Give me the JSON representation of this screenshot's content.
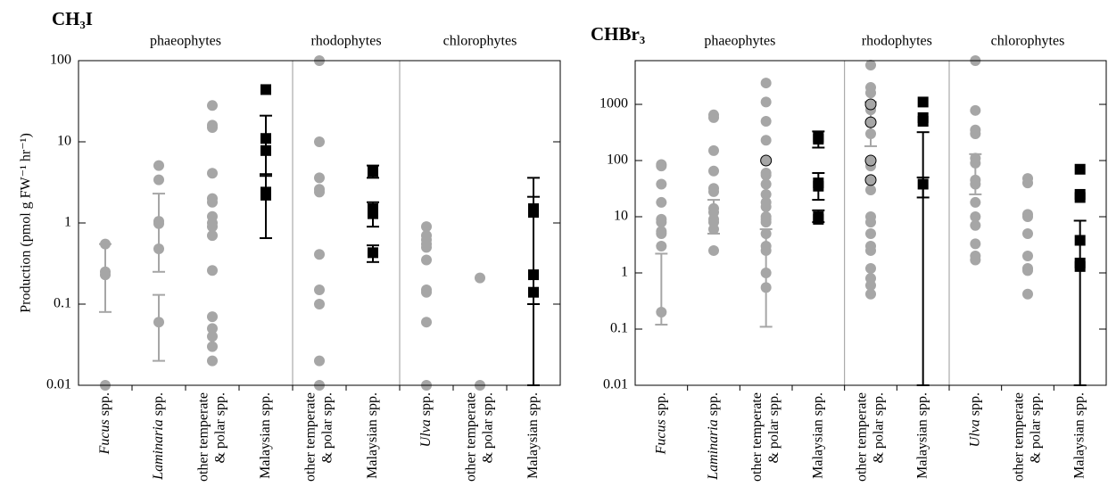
{
  "chart_data": [
    {
      "type": "scatter",
      "title": "CH₃I",
      "ylabel": "Production (pmol g FW⁻¹ hr⁻¹)",
      "log_y": true,
      "ylim": [
        0.01,
        100
      ],
      "yticks": [
        0.01,
        0.1,
        1,
        10,
        100
      ],
      "groups": [
        {
          "label": "phaeophytes",
          "categories": [
            {
              "label": [
                [
                  {
                    "text": "Fucus",
                    "italic": true
                  },
                  " spp."
                ]
              ],
              "color": "#a6a6a6",
              "marker": "circle",
              "values": [
                0.55,
                0.25,
                0.23,
                0.01
              ],
              "error_bars": [
                [
                  0.08,
                  0.55
                ]
              ]
            },
            {
              "label": [
                [
                  {
                    "text": "Laminaria",
                    "italic": true
                  },
                  " spp."
                ]
              ],
              "color": "#a6a6a6",
              "marker": "circle",
              "values": [
                5.1,
                3.4,
                1.05,
                0.98,
                0.48,
                0.06
              ],
              "error_bars": [
                [
                  0.25,
                  2.3
                ],
                [
                  0.02,
                  0.13
                ]
              ]
            },
            {
              "label": [
                [
                  "other temperate"
                ],
                [
                  "& polar spp."
                ]
              ],
              "color": "#a6a6a6",
              "marker": "circle",
              "values": [
                28,
                16,
                15,
                4.1,
                2.0,
                1.8,
                1.2,
                1.0,
                0.9,
                0.7,
                0.26,
                0.07,
                0.05,
                0.04,
                0.03,
                0.02
              ]
            },
            {
              "label": [
                [
                  "Malaysian spp."
                ]
              ],
              "color": "#000000",
              "marker": "square",
              "values": [
                44,
                11,
                7.8,
                2.4,
                2.2
              ],
              "error_bars": [
                [
                  3.8,
                  21
                ],
                [
                  0.65,
                  4
                ]
              ]
            }
          ]
        },
        {
          "label": "rhodophytes",
          "categories": [
            {
              "label": [
                [
                  "other temperate"
                ],
                [
                  "& polar spp."
                ]
              ],
              "color": "#a6a6a6",
              "marker": "circle",
              "values": [
                100,
                10,
                3.6,
                2.6,
                2.4,
                0.41,
                0.15,
                0.1,
                0.02,
                0.01
              ]
            },
            {
              "label": [
                [
                  "Malaysian spp."
                ]
              ],
              "color": "#000000",
              "marker": "square",
              "values": [
                4.3,
                1.5,
                1.3,
                0.43
              ],
              "error_bars": [
                [
                  3.6,
                  5.1
                ],
                [
                  0.9,
                  1.8
                ],
                [
                  0.33,
                  0.53
                ]
              ]
            }
          ]
        },
        {
          "label": "chlorophytes",
          "categories": [
            {
              "label": [
                [
                  {
                    "text": "Ulva",
                    "italic": true
                  },
                  " spp."
                ]
              ],
              "color": "#a6a6a6",
              "marker": "circle",
              "values": [
                0.9,
                0.7,
                0.62,
                0.55,
                0.5,
                0.35,
                0.15,
                0.14,
                0.06,
                0.01
              ]
            },
            {
              "label": [
                [
                  "other temperate"
                ],
                [
                  "& polar spp."
                ]
              ],
              "color": "#a6a6a6",
              "marker": "circle",
              "values": [
                0.21,
                0.01
              ]
            },
            {
              "label": [
                [
                  "Malaysian spp."
                ]
              ],
              "color": "#000000",
              "marker": "square",
              "values": [
                1.5,
                1.35,
                0.23,
                0.14
              ],
              "error_bars": [
                [
                  0.01,
                  3.6
                ],
                [
                  0.1,
                  2.1
                ]
              ]
            }
          ]
        }
      ]
    },
    {
      "type": "scatter",
      "title": "CHBr₃",
      "log_y": true,
      "ylim": [
        0.01,
        6000
      ],
      "yticks": [
        0.01,
        0.1,
        1,
        10,
        100,
        1000
      ],
      "groups": [
        {
          "label": "phaeophytes",
          "categories": [
            {
              "label": [
                [
                  {
                    "text": "Fucus",
                    "italic": true
                  },
                  " spp."
                ]
              ],
              "color": "#a6a6a6",
              "marker": "circle",
              "values": [
                85,
                80,
                38,
                18,
                9,
                8,
                5.5,
                5,
                3,
                0.2
              ],
              "error_bars": [
                [
                  0.12,
                  2.2
                ]
              ]
            },
            {
              "label": [
                [
                  {
                    "text": "Laminaria",
                    "italic": true
                  },
                  " spp."
                ]
              ],
              "color": "#a6a6a6",
              "marker": "circle",
              "values": [
                650,
                580,
                150,
                65,
                32,
                28,
                14,
                12,
                9,
                8,
                6,
                2.5
              ],
              "error_bars": [
                [
                  5,
                  20
                ]
              ]
            },
            {
              "label": [
                [
                  "other temperate"
                ],
                [
                  "& polar spp."
                ]
              ],
              "color": "#a6a6a6",
              "marker": "circle",
              "values": [
                2400,
                1100,
                500,
                230,
                60,
                55,
                38,
                25,
                18,
                15,
                10,
                9,
                8,
                5,
                3,
                2.5,
                1,
                0.55
              ],
              "outlined": [
                100
              ],
              "error_bars": [
                [
                  0.11,
                  6
                ]
              ]
            },
            {
              "label": [
                [
                  "Malaysian spp."
                ]
              ],
              "color": "#000000",
              "marker": "square",
              "values": [
                260,
                240,
                40,
                35,
                10,
                9
              ],
              "error_bars": [
                [
                  170,
                  330
                ],
                [
                  20,
                  60
                ],
                [
                  8,
                  13
                ]
              ]
            }
          ]
        },
        {
          "label": "rhodophytes",
          "categories": [
            {
              "label": [
                [
                  "other temperate"
                ],
                [
                  "& polar spp."
                ]
              ],
              "color": "#a6a6a6",
              "marker": "circle",
              "values": [
                5000,
                2000,
                1600,
                800,
                300,
                80,
                30,
                10,
                8,
                5,
                3,
                2.5,
                1.2,
                0.8,
                0.6,
                0.42
              ],
              "outlined": [
                1000,
                480,
                100,
                45
              ],
              "error_bars": [
                [
                  180,
                  1100
                ]
              ]
            },
            {
              "label": [
                [
                  "Malaysian spp."
                ]
              ],
              "color": "#000000",
              "marker": "square",
              "values": [
                1100,
                580,
                500,
                38
              ],
              "error_bars": [
                [
                  0.01,
                  320
                ],
                [
                  22,
                  50
                ]
              ]
            }
          ]
        },
        {
          "label": "chlorophytes",
          "categories": [
            {
              "label": [
                [
                  {
                    "text": "Ulva",
                    "italic": true
                  },
                  " spp."
                ]
              ],
              "color": "#a6a6a6",
              "marker": "circle",
              "values": [
                6000,
                780,
                350,
                300,
                110,
                90,
                45,
                38,
                18,
                10,
                7,
                3.3,
                2,
                1.7
              ],
              "error_bars": [
                [
                  25,
                  130
                ]
              ]
            },
            {
              "label": [
                [
                  "other temperate"
                ],
                [
                  "& polar spp."
                ]
              ],
              "color": "#a6a6a6",
              "marker": "circle",
              "values": [
                48,
                40,
                11,
                10,
                5,
                2,
                1.2,
                1.1,
                0.42
              ]
            },
            {
              "label": [
                [
                  "Malaysian spp."
                ]
              ],
              "color": "#000000",
              "marker": "square",
              "values": [
                70,
                25,
                22,
                3.8,
                1.5,
                1.3
              ],
              "error_bars": [
                [
                  0.01,
                  8.5
                ]
              ]
            }
          ]
        }
      ]
    }
  ]
}
